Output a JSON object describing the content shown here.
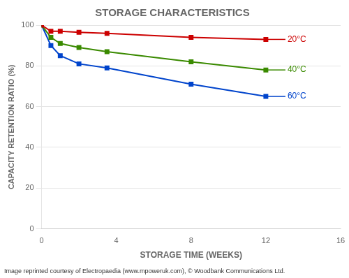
{
  "chart_data": {
    "type": "line",
    "title": "STORAGE CHARACTERISTICS",
    "xlabel": "STORAGE TIME (WEEKS)",
    "ylabel": "CAPACITY RETENTION RATIO (%)",
    "x": [
      0,
      0.5,
      1,
      2,
      3.5,
      8,
      12
    ],
    "series": [
      {
        "name": "20°C",
        "color": "#cc0000",
        "marker": "square",
        "values": [
          100,
          97,
          97,
          96.5,
          96,
          94,
          93
        ]
      },
      {
        "name": "40°C",
        "color": "#3a8a00",
        "marker": "square",
        "values": [
          100,
          94,
          91,
          89,
          87,
          82,
          78
        ]
      },
      {
        "name": "60°C",
        "color": "#0044cc",
        "marker": "square",
        "values": [
          100,
          90,
          85,
          81,
          79,
          71,
          65
        ]
      }
    ],
    "xlim": [
      0,
      16
    ],
    "xticks": [
      0,
      4,
      8,
      12,
      16
    ],
    "ylim": [
      0,
      100
    ],
    "yticks": [
      0,
      20,
      40,
      60,
      80,
      100
    ],
    "grid": "y",
    "legend": false,
    "footer": "Image reprinted courtesy of Electropaedia (www.mpoweruk.com), © Woodbank Communications Ltd."
  }
}
